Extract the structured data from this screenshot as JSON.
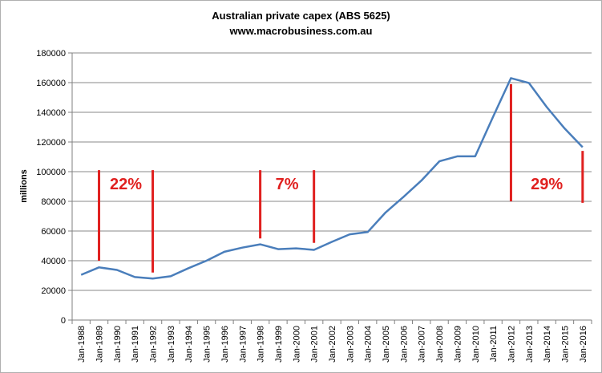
{
  "colors": {
    "series": "#4a7ebb",
    "annotation": "#e0201f",
    "grid": "#888888",
    "axis": "#808080"
  },
  "chart_data": {
    "type": "line",
    "title": "Australian private capex (ABS 5625)",
    "subtitle": "www.macrobusiness.com.au",
    "ylabel": "millions",
    "xlabel": "",
    "ylim": [
      0,
      180000
    ],
    "yticks": [
      0,
      20000,
      40000,
      60000,
      80000,
      100000,
      120000,
      140000,
      160000,
      180000
    ],
    "grid": true,
    "categories": [
      "Jan-1988",
      "Jan-1989",
      "Jan-1990",
      "Jan-1991",
      "Jan-1992",
      "Jan-1993",
      "Jan-1994",
      "Jan-1995",
      "Jan-1996",
      "Jan-1997",
      "Jan-1998",
      "Jan-1999",
      "Jan-2000",
      "Jan-2001",
      "Jan-2002",
      "Jan-2003",
      "Jan-2004",
      "Jan-2005",
      "Jan-2006",
      "Jan-2007",
      "Jan-2008",
      "Jan-2009",
      "Jan-2010",
      "Jan-2011",
      "Jan-2012",
      "Jan-2013",
      "Jan-2014",
      "Jan-2015",
      "Jan-2016"
    ],
    "series": [
      {
        "values": [
          30500,
          35500,
          33800,
          29000,
          28000,
          29500,
          35000,
          40000,
          46000,
          48800,
          51000,
          47800,
          48300,
          47300,
          52700,
          57800,
          59300,
          72500,
          83000,
          94000,
          107000,
          110300,
          110300,
          137000,
          163000,
          159800,
          143500,
          129000,
          116500
        ]
      }
    ],
    "annotations": [
      {
        "label": "22%",
        "bars": [
          {
            "x": "Jan-1989",
            "y_from": 40000,
            "y_to": 101000
          },
          {
            "x": "Jan-1992",
            "y_from": 32000,
            "y_to": 101000
          }
        ],
        "label_between": [
          "Jan-1989",
          "Jan-1992"
        ],
        "label_y": 88000
      },
      {
        "label": "7%",
        "bars": [
          {
            "x": "Jan-1998",
            "y_from": 55000,
            "y_to": 101000
          },
          {
            "x": "Jan-2001",
            "y_from": 52000,
            "y_to": 101000
          }
        ],
        "label_between": [
          "Jan-1998",
          "Jan-2001"
        ],
        "label_y": 88000
      },
      {
        "label": "29%",
        "bars": [
          {
            "x": "Jan-2012",
            "y_from": 80000,
            "y_to": 159000
          },
          {
            "x": "Jan-2016",
            "y_from": 79000,
            "y_to": 114000
          }
        ],
        "label_between": [
          "Jan-2012",
          "Jan-2016"
        ],
        "label_y": 88000
      }
    ]
  }
}
